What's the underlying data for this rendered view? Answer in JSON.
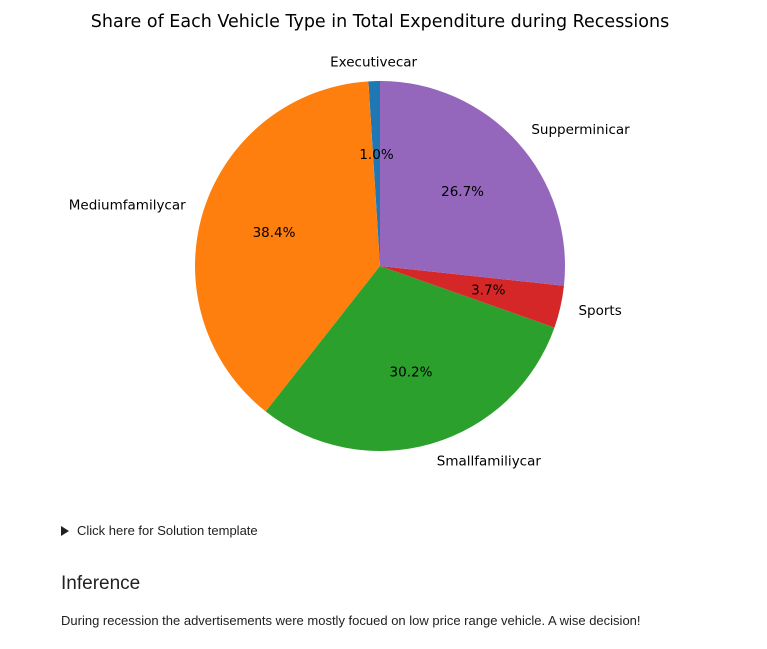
{
  "chart_data": {
    "type": "pie",
    "title": "Share of Each Vehicle Type in Total Expenditure during Recessions",
    "categories": [
      "Executivecar",
      "Mediumfamilycar",
      "Smallfamiliycar",
      "Sports",
      "Supperminicar"
    ],
    "values": [
      1.0,
      38.4,
      30.2,
      3.7,
      26.7
    ],
    "value_labels": [
      "1.0%",
      "38.4%",
      "30.2%",
      "3.7%",
      "26.7%"
    ],
    "colors": [
      "#1f77b4",
      "#ff7f0e",
      "#2ca02c",
      "#d62728",
      "#9467bd"
    ],
    "start_angle_deg": 90,
    "direction": "counterclockwise"
  },
  "solution": {
    "summary_label": "Click here for Solution template"
  },
  "inference": {
    "heading": "Inference",
    "text": "During recession the advertisements were mostly focued on low price range vehicle. A wise decision!"
  }
}
